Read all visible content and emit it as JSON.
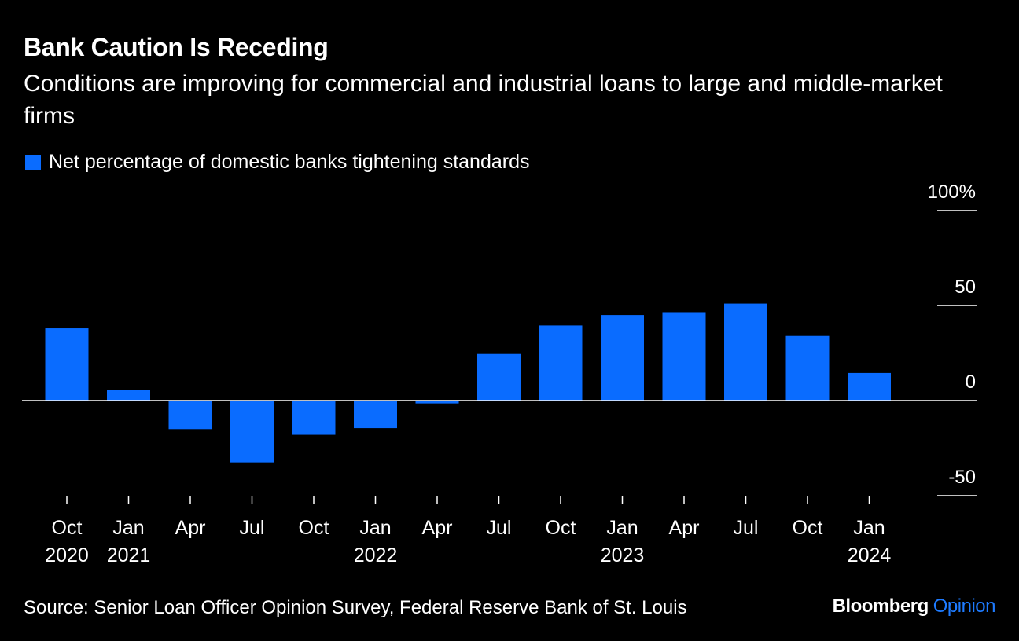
{
  "title": "Bank Caution Is Receding",
  "subtitle": "Conditions are improving for commercial and industrial loans to large and middle-market firms",
  "legend": {
    "label": "Net percentage of domestic banks tightening standards"
  },
  "colors": {
    "bar": "#0a6cff",
    "background": "#000000",
    "text": "#ffffff",
    "brand_accent": "#1e7bff"
  },
  "source": "Source: Senior Loan Officer Opinion Survey, Federal Reserve Bank of St. Louis",
  "brand": {
    "main": "Bloomberg",
    "sub": "Opinion"
  },
  "chart_data": {
    "type": "bar",
    "categories": [
      [
        "Oct",
        "2020"
      ],
      [
        "Jan",
        "2021"
      ],
      [
        "Apr",
        ""
      ],
      [
        "Jul",
        ""
      ],
      [
        "Oct",
        ""
      ],
      [
        "Jan",
        "2022"
      ],
      [
        "Apr",
        ""
      ],
      [
        "Jul",
        ""
      ],
      [
        "Oct",
        ""
      ],
      [
        "Jan",
        "2023"
      ],
      [
        "Apr",
        ""
      ],
      [
        "Jul",
        ""
      ],
      [
        "Oct",
        ""
      ],
      [
        "Jan",
        "2024"
      ]
    ],
    "series": [
      {
        "name": "Net percentage of domestic banks tightening standards",
        "values": [
          38.0,
          5.5,
          -15.0,
          -32.5,
          -18.0,
          -14.5,
          -1.5,
          24.5,
          39.5,
          45.0,
          46.5,
          51.0,
          34.0,
          14.5
        ]
      }
    ],
    "ylim": [
      -50,
      100
    ],
    "yticks": [
      100,
      50,
      0,
      -50
    ],
    "ytick_labels": [
      "100%",
      "50",
      "0",
      "-50"
    ],
    "y_axis_position": "right",
    "grid": false
  }
}
